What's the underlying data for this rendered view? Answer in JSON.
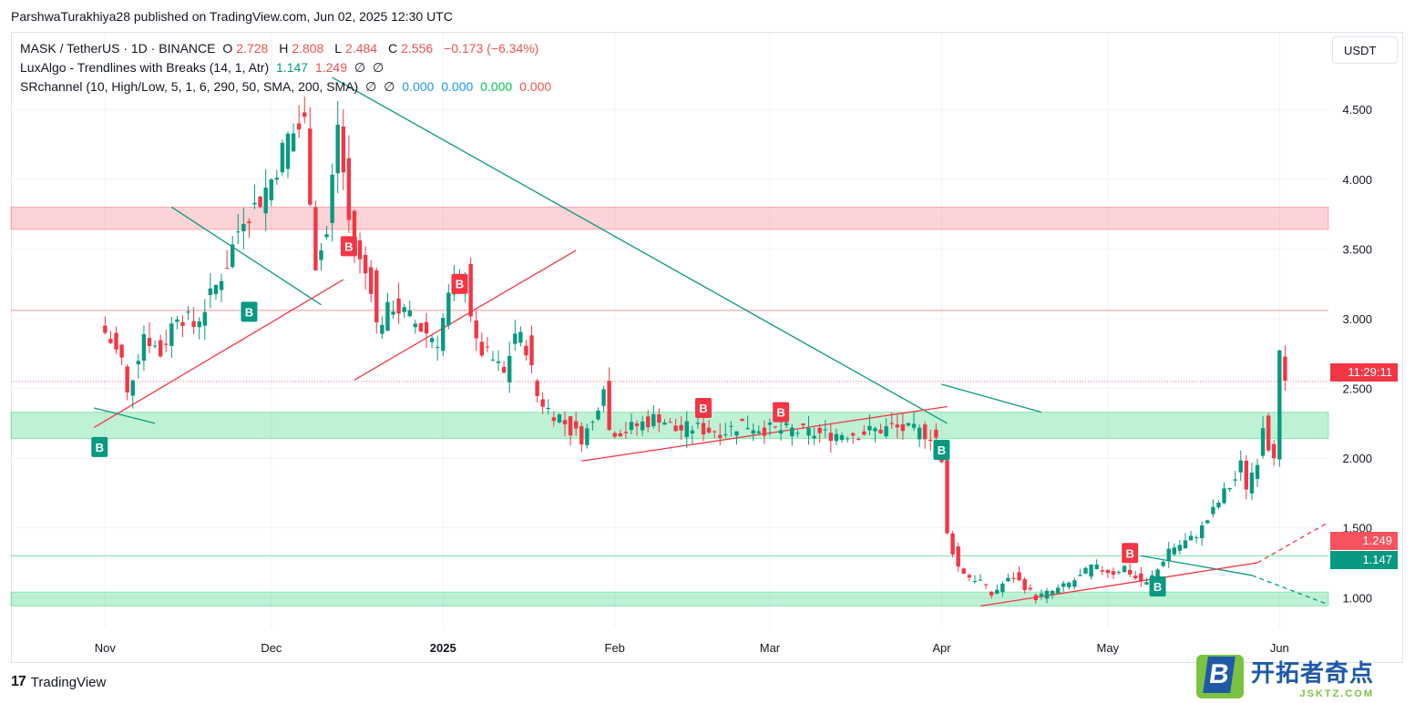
{
  "header": {
    "publisher_line": "ParshwaTurakhiya28 published on TradingView.com, Jun 02, 2025 12:30 UTC"
  },
  "legend": {
    "symbol": "MASK / TetherUS · 1D · BINANCE",
    "ohlc": {
      "o_label": "O",
      "o": "2.728",
      "h_label": "H",
      "h": "2.808",
      "l_label": "L",
      "l": "2.484",
      "c_label": "C",
      "c": "2.556",
      "change": "−0.173 (−6.34%)"
    },
    "ind1": {
      "name": "LuxAlgo - Trendlines with Breaks (14, 1, Atr)",
      "v1": "1.147",
      "v2": "1.249",
      "v3": "∅",
      "v4": "∅"
    },
    "ind2": {
      "name": "SRchannel (10, High/Low, 5, 1, 6, 290, 50, SMA, 200, SMA)",
      "v1": "∅",
      "v2": "∅",
      "v3": "0.000",
      "v4": "0.000",
      "v5": "0.000",
      "v6": "0.000"
    }
  },
  "currency_button": "USDT",
  "price_tags": {
    "countdown": "11:29:11",
    "upper_trendline": "1.249",
    "lower_trendline": "1.147"
  },
  "footer": {
    "brand": "TradingView",
    "brand_mark": "17"
  },
  "watermark": {
    "cn": "开拓者奇点",
    "en": "JSKTZ.COM"
  },
  "colors": {
    "up": "#089981",
    "down": "#f23645",
    "resistance": "#f23645",
    "support": "#00c853"
  },
  "chart_data": {
    "type": "candlestick",
    "symbol": "MASK / TetherUS",
    "interval": "1D",
    "ylim": [
      0.78,
      5.05
    ],
    "y_ticks": [
      "1.000",
      "1.500",
      "2.000",
      "2.500",
      "3.000",
      "3.500",
      "4.000",
      "4.500"
    ],
    "x_ticks": [
      {
        "label": "Nov",
        "day": 0
      },
      {
        "label": "Dec",
        "day": 30
      },
      {
        "label": "2025",
        "day": 61,
        "bold": true
      },
      {
        "label": "Feb",
        "day": 92
      },
      {
        "label": "Mar",
        "day": 120
      },
      {
        "label": "Apr",
        "day": 151
      },
      {
        "label": "May",
        "day": 181
      },
      {
        "label": "Jun",
        "day": 212
      }
    ],
    "anchors": [
      [
        0,
        2.9
      ],
      [
        3,
        2.7
      ],
      [
        4,
        2.45
      ],
      [
        7,
        2.9
      ],
      [
        10,
        2.75
      ],
      [
        13,
        3.05
      ],
      [
        16,
        2.95
      ],
      [
        19,
        3.15
      ],
      [
        22,
        3.4
      ],
      [
        25,
        3.75
      ],
      [
        27,
        3.8
      ],
      [
        30,
        4.0
      ],
      [
        33,
        4.3
      ],
      [
        36,
        4.4
      ],
      [
        38,
        3.4
      ],
      [
        40,
        3.6
      ],
      [
        42,
        4.4
      ],
      [
        44,
        3.7
      ],
      [
        46,
        3.4
      ],
      [
        48,
        3.25
      ],
      [
        49,
        2.95
      ],
      [
        52,
        3.1
      ],
      [
        55,
        3.0
      ],
      [
        58,
        2.9
      ],
      [
        60,
        2.85
      ],
      [
        62,
        3.15
      ],
      [
        65,
        3.3
      ],
      [
        67,
        2.8
      ],
      [
        70,
        2.7
      ],
      [
        72,
        2.6
      ],
      [
        74,
        2.9
      ],
      [
        76,
        2.8
      ],
      [
        78,
        2.45
      ],
      [
        80,
        2.35
      ],
      [
        82,
        2.3
      ],
      [
        84,
        2.2
      ],
      [
        86,
        2.15
      ],
      [
        88,
        2.25
      ],
      [
        90,
        2.55
      ],
      [
        91,
        2.2
      ],
      [
        94,
        2.2
      ],
      [
        97,
        2.25
      ],
      [
        100,
        2.3
      ],
      [
        103,
        2.2
      ],
      [
        106,
        2.22
      ],
      [
        109,
        2.2
      ],
      [
        112,
        2.2
      ],
      [
        115,
        2.25
      ],
      [
        118,
        2.22
      ],
      [
        121,
        2.2
      ],
      [
        124,
        2.2
      ],
      [
        127,
        2.18
      ],
      [
        130,
        2.17
      ],
      [
        133,
        2.18
      ],
      [
        136,
        2.18
      ],
      [
        139,
        2.2
      ],
      [
        142,
        2.22
      ],
      [
        145,
        2.2
      ],
      [
        148,
        2.18
      ],
      [
        150,
        2.15
      ],
      [
        151,
        1.95
      ],
      [
        152,
        1.45
      ],
      [
        154,
        1.22
      ],
      [
        156,
        1.15
      ],
      [
        158,
        1.12
      ],
      [
        160,
        1.02
      ],
      [
        162,
        1.1
      ],
      [
        164,
        1.15
      ],
      [
        166,
        1.08
      ],
      [
        168,
        1.0
      ],
      [
        170,
        1.03
      ],
      [
        172,
        1.06
      ],
      [
        174,
        1.1
      ],
      [
        176,
        1.15
      ],
      [
        178,
        1.22
      ],
      [
        180,
        1.2
      ],
      [
        182,
        1.18
      ],
      [
        184,
        1.22
      ],
      [
        186,
        1.14
      ],
      [
        188,
        1.1
      ],
      [
        190,
        1.2
      ],
      [
        192,
        1.35
      ],
      [
        194,
        1.38
      ],
      [
        196,
        1.42
      ],
      [
        198,
        1.5
      ],
      [
        200,
        1.62
      ],
      [
        202,
        1.75
      ],
      [
        204,
        1.85
      ],
      [
        205,
        1.95
      ],
      [
        206,
        1.8
      ],
      [
        208,
        2.0
      ],
      [
        209,
        2.25
      ],
      [
        210,
        2.1
      ],
      [
        211,
        2.05
      ],
      [
        212,
        2.72
      ],
      [
        213,
        2.556
      ]
    ],
    "last_price": 2.556,
    "resistance_zones": [
      {
        "from": 3.64,
        "to": 3.8
      }
    ],
    "support_zones": [
      {
        "from": 2.14,
        "to": 2.33
      },
      {
        "from": 0.94,
        "to": 1.04
      }
    ],
    "horizontal_levels": [
      {
        "value": 3.06,
        "kind": "resistance"
      },
      {
        "value": 1.3,
        "kind": "support"
      },
      {
        "value": 2.55,
        "kind": "current"
      }
    ],
    "trendlines": [
      {
        "kind": "down",
        "from": [
          -2,
          2.36
        ],
        "to": [
          9,
          2.25
        ]
      },
      {
        "kind": "down",
        "from": [
          12,
          3.8
        ],
        "to": [
          39,
          3.1
        ]
      },
      {
        "kind": "down",
        "from": [
          41,
          4.73
        ],
        "to": [
          152,
          2.25
        ]
      },
      {
        "kind": "down",
        "from": [
          151,
          2.53
        ],
        "to": [
          169,
          2.33
        ]
      },
      {
        "kind": "down",
        "from": [
          187,
          1.3
        ],
        "to": [
          207,
          1.16
        ]
      },
      {
        "kind": "down",
        "from": [
          207,
          1.16
        ],
        "to": [
          233,
          0.95
        ],
        "dashed": true
      },
      {
        "kind": "up",
        "from": [
          -2,
          2.22
        ],
        "to": [
          43,
          3.28
        ]
      },
      {
        "kind": "up",
        "from": [
          45,
          2.56
        ],
        "to": [
          85,
          3.49
        ]
      },
      {
        "kind": "up",
        "from": [
          86,
          1.98
        ],
        "to": [
          152,
          2.37
        ]
      },
      {
        "kind": "up",
        "from": [
          158,
          0.94
        ],
        "to": [
          208,
          1.25
        ]
      },
      {
        "kind": "up",
        "from": [
          208,
          1.25
        ],
        "to": [
          233,
          1.54
        ],
        "dashed": true
      }
    ],
    "break_markers": [
      {
        "day": -1,
        "price": 2.08,
        "kind": "up",
        "text": "B"
      },
      {
        "day": 26,
        "price": 3.05,
        "kind": "up",
        "text": "B"
      },
      {
        "day": 44,
        "price": 3.52,
        "kind": "down",
        "text": "B"
      },
      {
        "day": 64,
        "price": 3.25,
        "kind": "down",
        "text": "B"
      },
      {
        "day": 108,
        "price": 2.36,
        "kind": "down",
        "text": "B"
      },
      {
        "day": 122,
        "price": 2.33,
        "kind": "down",
        "text": "B"
      },
      {
        "day": 151,
        "price": 2.06,
        "kind": "up",
        "text": "B"
      },
      {
        "day": 185,
        "price": 1.32,
        "kind": "down",
        "text": "B"
      },
      {
        "day": 190,
        "price": 1.08,
        "kind": "up",
        "text": "B"
      }
    ]
  }
}
